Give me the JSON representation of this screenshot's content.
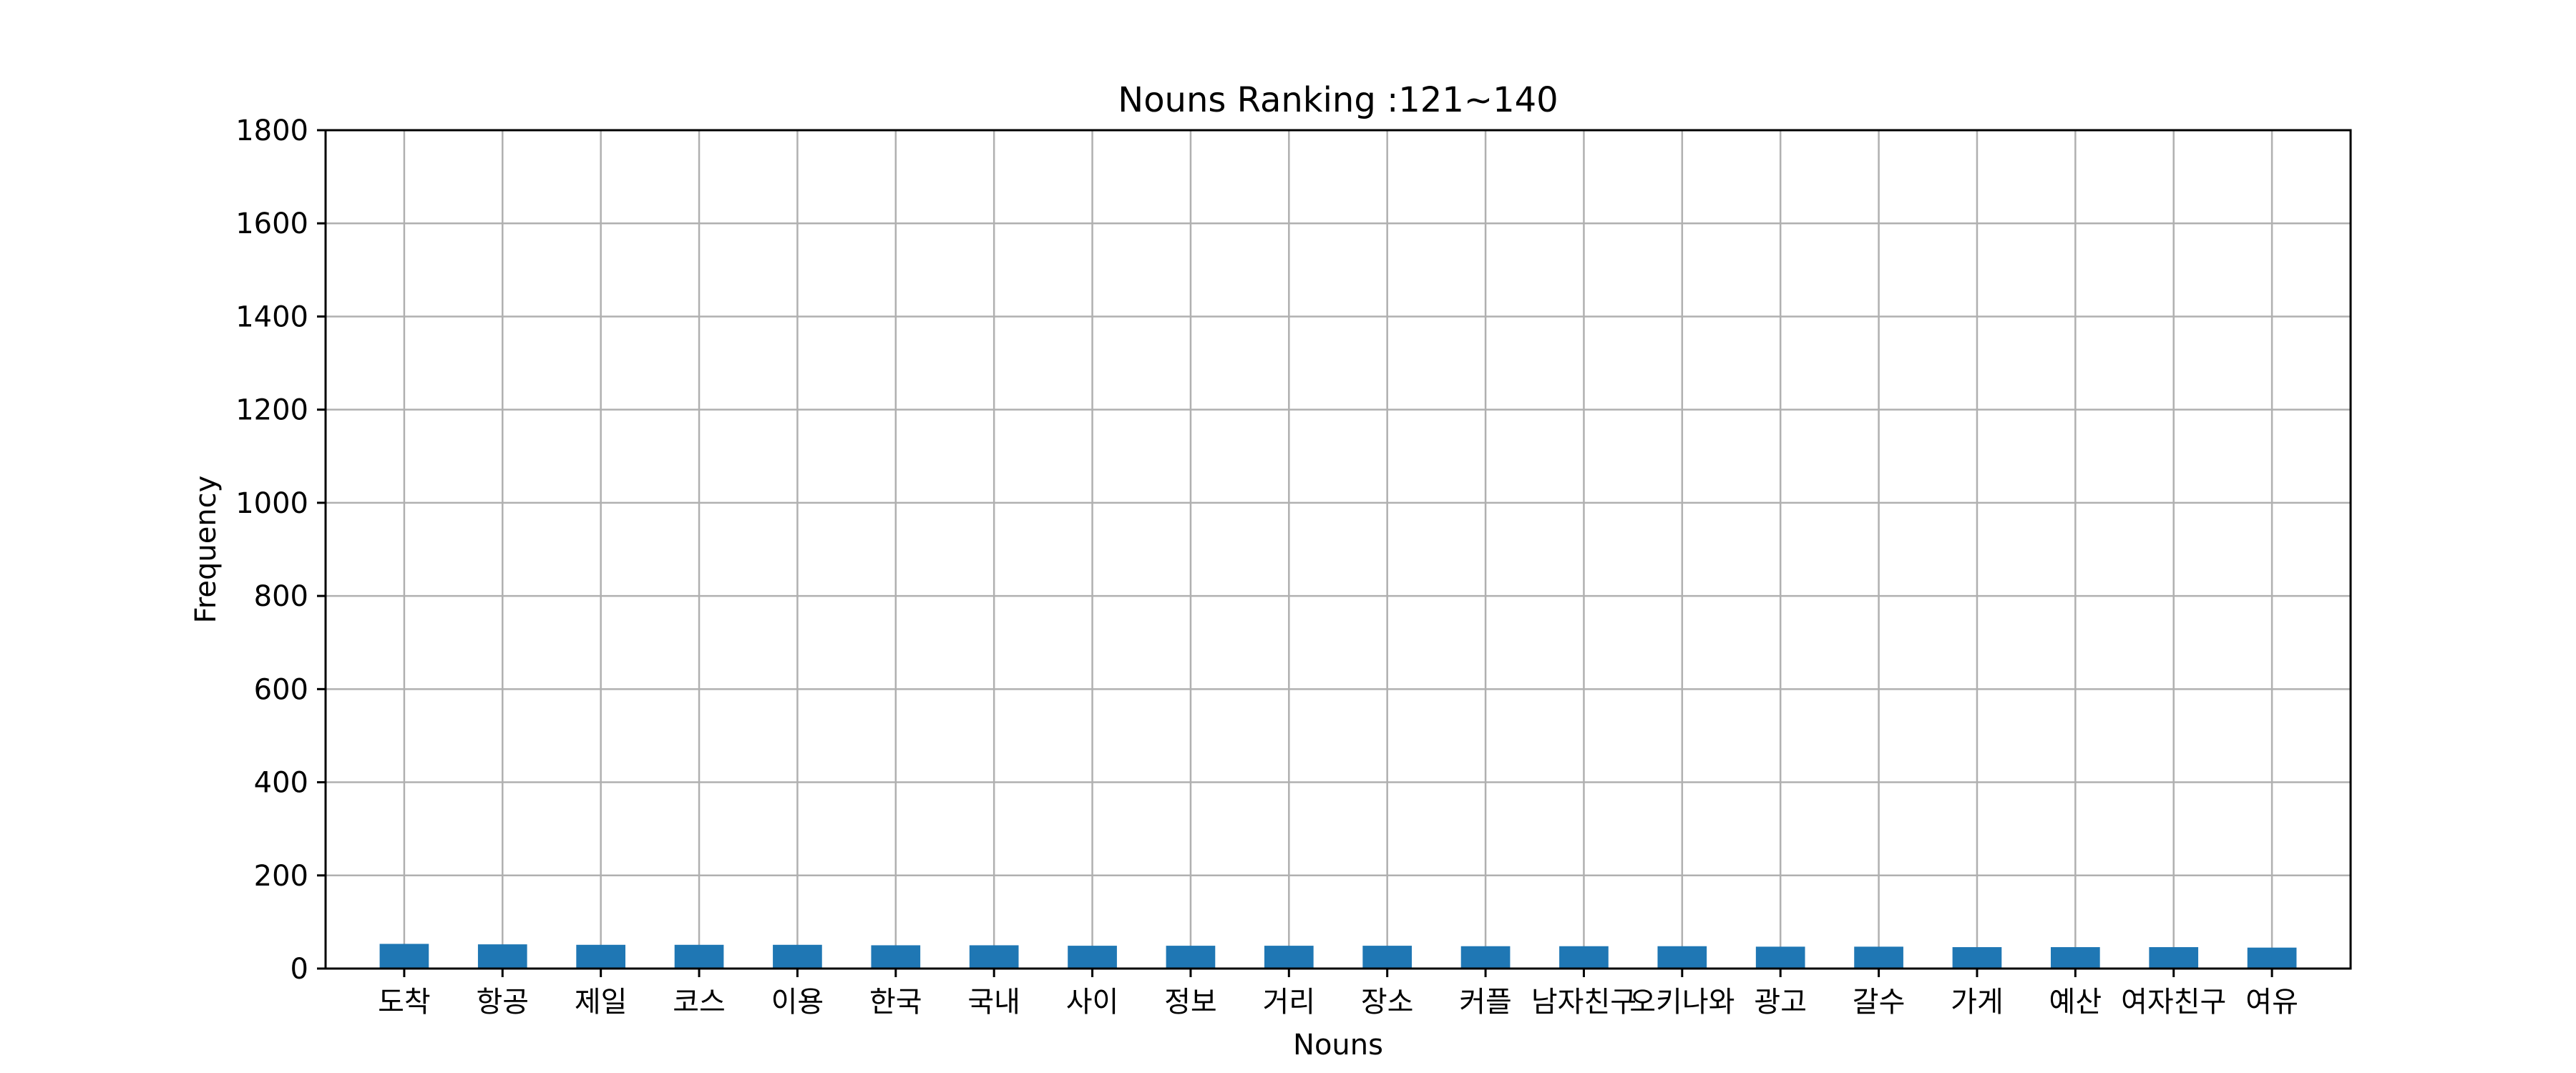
{
  "chart_data": {
    "type": "bar",
    "title": "Nouns Ranking :121~140",
    "xlabel": "Nouns",
    "ylabel": "Frequency",
    "ylim": [
      0,
      1800
    ],
    "yticks": [
      0,
      200,
      400,
      600,
      800,
      1000,
      1200,
      1400,
      1600,
      1800
    ],
    "grid": true,
    "bar_color": "#1f77b4",
    "categories": [
      "도착",
      "항공",
      "제일",
      "코스",
      "이용",
      "한국",
      "국내",
      "사이",
      "정보",
      "거리",
      "장소",
      "커플",
      "남자친구",
      "오키나와",
      "광고",
      "갈수",
      "가게",
      "예산",
      "여자친구",
      "여유"
    ],
    "values": [
      53,
      52,
      51,
      51,
      51,
      50,
      50,
      49,
      49,
      49,
      49,
      48,
      48,
      48,
      47,
      47,
      46,
      46,
      46,
      45
    ]
  }
}
